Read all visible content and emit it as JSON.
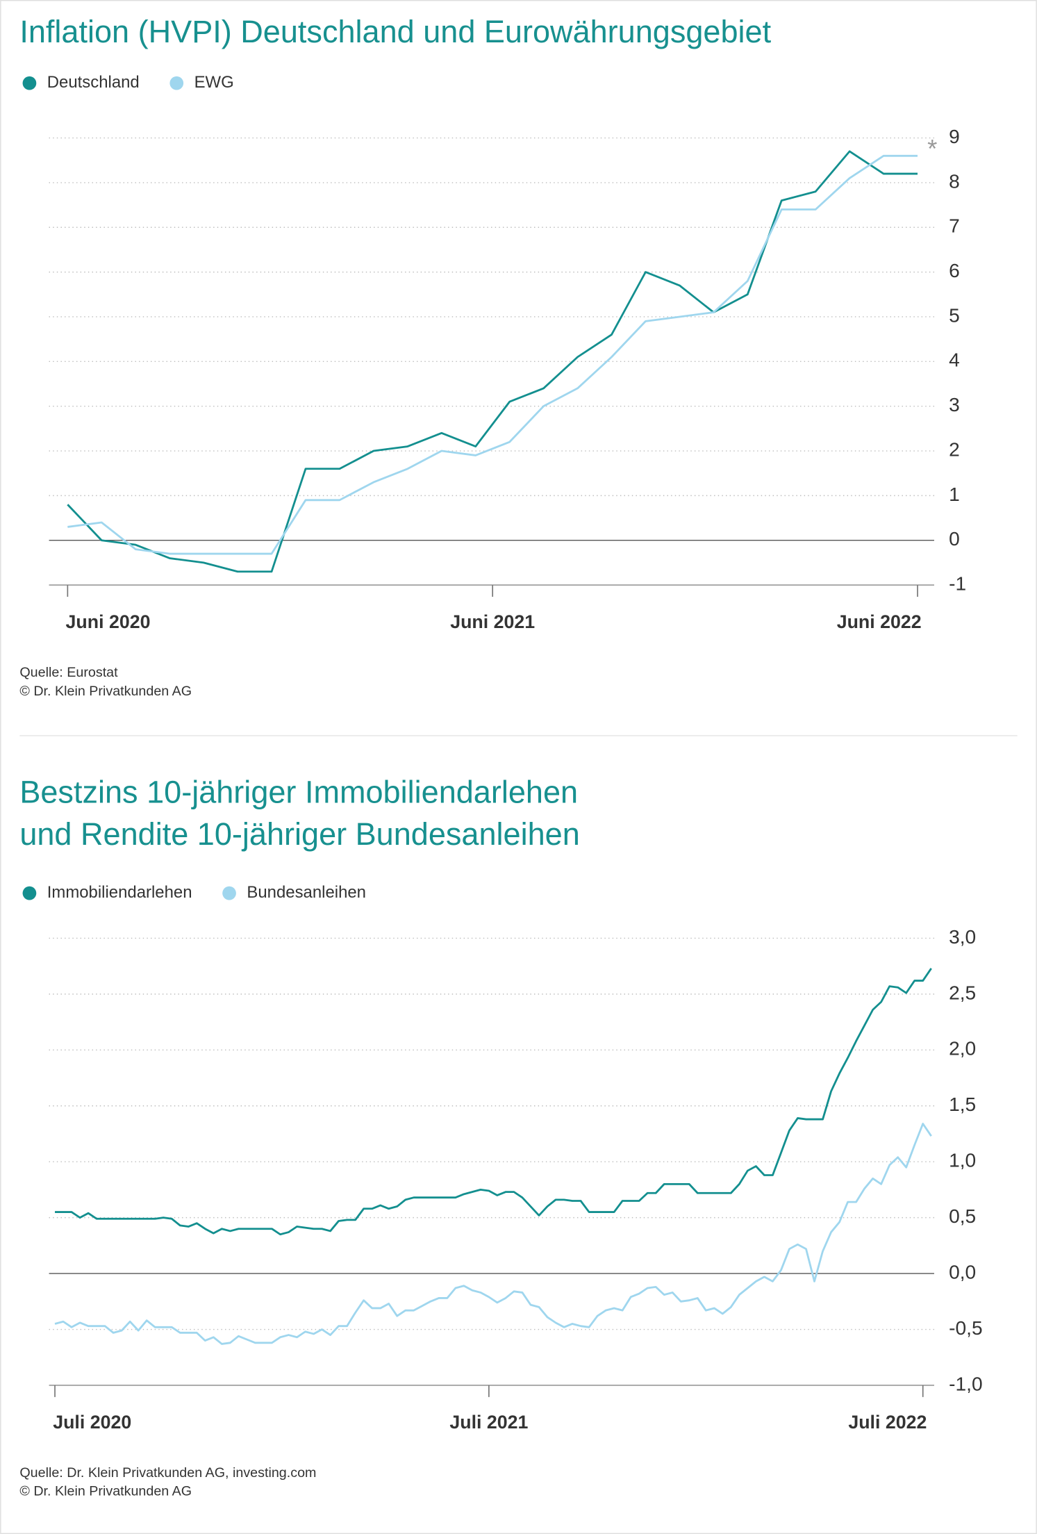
{
  "chart_data": [
    {
      "type": "line",
      "title": [
        "Inflation (HVPI) Deutschland und Eurowährungsgebiet"
      ],
      "source": [
        "Quelle: Eurostat",
        "© Dr. Klein Privatkunden AG"
      ],
      "annotation": "*",
      "x": [
        0,
        1,
        2,
        3,
        4,
        5,
        6,
        7,
        8,
        9,
        10,
        11,
        12,
        13,
        14,
        15,
        16,
        17,
        18,
        19,
        20,
        21,
        22,
        23,
        24,
        25
      ],
      "xlim": [
        0,
        25
      ],
      "xticks": [
        {
          "value": 0,
          "label": "Juni 2020"
        },
        {
          "value": 12.5,
          "label": "Juni 2021"
        },
        {
          "value": 25,
          "label": "Juni 2022"
        }
      ],
      "ylim": [
        -1,
        9
      ],
      "yticks": [
        -1,
        0,
        1,
        2,
        3,
        4,
        5,
        6,
        7,
        8,
        9
      ],
      "grid": true,
      "series": [
        {
          "name": "Deutschland",
          "color": "#138f8f",
          "values": [
            0.8,
            0.0,
            -0.1,
            -0.4,
            -0.5,
            -0.7,
            -0.7,
            1.6,
            1.6,
            2.0,
            2.1,
            2.4,
            2.1,
            3.1,
            3.4,
            4.1,
            4.6,
            6.0,
            5.7,
            5.1,
            5.5,
            7.6,
            7.8,
            8.7,
            8.2,
            8.2
          ]
        },
        {
          "name": "EWG",
          "color": "#9fd6ee",
          "values": [
            0.3,
            0.4,
            -0.2,
            -0.3,
            -0.3,
            -0.3,
            -0.3,
            0.9,
            0.9,
            1.3,
            1.6,
            2.0,
            1.9,
            2.2,
            3.0,
            3.4,
            4.1,
            4.9,
            5.0,
            5.1,
            5.8,
            7.4,
            7.4,
            8.1,
            8.6,
            8.6
          ]
        }
      ]
    },
    {
      "type": "line",
      "title": [
        "Bestzins 10-jähriger Immobiliendarlehen",
        "und Rendite 10-jähriger Bundesanleihen"
      ],
      "source": [
        "Quelle: Dr. Klein Privatkunden AG, investing.com",
        "© Dr. Klein Privatkunden AG"
      ],
      "x": [
        0,
        1,
        2,
        3,
        4,
        5,
        6,
        7,
        8,
        9,
        10,
        11,
        12,
        13,
        14,
        15,
        16,
        17,
        18,
        19,
        20,
        21,
        22,
        23,
        24,
        25,
        26,
        27,
        28,
        29,
        30,
        31,
        32,
        33,
        34,
        35,
        36,
        37,
        38,
        39,
        40,
        41,
        42,
        43,
        44,
        45,
        46,
        47,
        48,
        49,
        50,
        51,
        52,
        53,
        54,
        55,
        56,
        57,
        58,
        59,
        60,
        61,
        62,
        63,
        64,
        65,
        66,
        67,
        68,
        69,
        70,
        71,
        72,
        73,
        74,
        75,
        76,
        77,
        78,
        79,
        80,
        81,
        82,
        83,
        84,
        85,
        86,
        87,
        88,
        89,
        90,
        91,
        92,
        93,
        94,
        95,
        96,
        97,
        98,
        99,
        100,
        101,
        102,
        103,
        104,
        105
      ],
      "xlim": [
        0,
        105
      ],
      "xticks": [
        {
          "value": 0,
          "label": "Juli 2020"
        },
        {
          "value": 52,
          "label": "Juli 2021"
        },
        {
          "value": 104,
          "label": "Juli 2022"
        }
      ],
      "ylim": [
        -1,
        3
      ],
      "yticks": [
        {
          "value": -1,
          "label": "-1,0"
        },
        {
          "value": -0.5,
          "label": "-0,5"
        },
        {
          "value": 0,
          "label": "0,0"
        },
        {
          "value": 0.5,
          "label": "0,5"
        },
        {
          "value": 1,
          "label": "1,0"
        },
        {
          "value": 1.5,
          "label": "1,5"
        },
        {
          "value": 2,
          "label": "2,0"
        },
        {
          "value": 2.5,
          "label": "2,5"
        },
        {
          "value": 3,
          "label": "3,0"
        }
      ],
      "grid": true,
      "series": [
        {
          "name": "Immobiliendarlehen",
          "color": "#138f8f",
          "values": [
            0.55,
            0.55,
            0.55,
            0.5,
            0.54,
            0.49,
            0.49,
            0.49,
            0.49,
            0.49,
            0.49,
            0.49,
            0.49,
            0.5,
            0.49,
            0.43,
            0.42,
            0.45,
            0.4,
            0.36,
            0.4,
            0.38,
            0.4,
            0.4,
            0.4,
            0.4,
            0.4,
            0.35,
            0.37,
            0.42,
            0.41,
            0.4,
            0.4,
            0.38,
            0.47,
            0.48,
            0.48,
            0.58,
            0.58,
            0.61,
            0.58,
            0.6,
            0.66,
            0.68,
            0.68,
            0.68,
            0.68,
            0.68,
            0.68,
            0.71,
            0.73,
            0.75,
            0.74,
            0.7,
            0.73,
            0.73,
            0.68,
            0.6,
            0.52,
            0.6,
            0.66,
            0.66,
            0.65,
            0.65,
            0.55,
            0.55,
            0.55,
            0.55,
            0.65,
            0.65,
            0.65,
            0.72,
            0.72,
            0.8,
            0.8,
            0.8,
            0.8,
            0.72,
            0.72,
            0.72,
            0.72,
            0.72,
            0.8,
            0.92,
            0.96,
            0.88,
            0.88,
            1.08,
            1.28,
            1.39,
            1.38,
            1.38,
            1.38,
            1.63,
            1.79,
            1.93,
            2.08,
            2.22,
            2.36,
            2.43,
            2.57,
            2.56,
            2.51,
            2.62,
            2.62,
            2.73
          ]
        },
        {
          "name": "Bundesanleihen",
          "color": "#9fd6ee",
          "values": [
            -0.45,
            -0.43,
            -0.48,
            -0.44,
            -0.47,
            -0.47,
            -0.47,
            -0.53,
            -0.51,
            -0.43,
            -0.51,
            -0.42,
            -0.48,
            -0.48,
            -0.48,
            -0.53,
            -0.53,
            -0.53,
            -0.6,
            -0.57,
            -0.63,
            -0.62,
            -0.56,
            -0.59,
            -0.62,
            -0.62,
            -0.62,
            -0.57,
            -0.55,
            -0.57,
            -0.52,
            -0.54,
            -0.5,
            -0.55,
            -0.47,
            -0.47,
            -0.35,
            -0.24,
            -0.31,
            -0.31,
            -0.27,
            -0.38,
            -0.33,
            -0.33,
            -0.29,
            -0.25,
            -0.22,
            -0.22,
            -0.13,
            -0.11,
            -0.15,
            -0.17,
            -0.21,
            -0.26,
            -0.22,
            -0.16,
            -0.17,
            -0.28,
            -0.3,
            -0.39,
            -0.44,
            -0.48,
            -0.45,
            -0.47,
            -0.48,
            -0.38,
            -0.33,
            -0.31,
            -0.33,
            -0.21,
            -0.18,
            -0.13,
            -0.12,
            -0.19,
            -0.17,
            -0.25,
            -0.24,
            -0.22,
            -0.33,
            -0.31,
            -0.36,
            -0.3,
            -0.19,
            -0.13,
            -0.07,
            -0.03,
            -0.07,
            0.03,
            0.22,
            0.26,
            0.22,
            -0.07,
            0.2,
            0.37,
            0.46,
            0.64,
            0.64,
            0.76,
            0.85,
            0.8,
            0.97,
            1.04,
            0.95,
            1.15,
            1.34,
            1.23
          ]
        }
      ]
    }
  ]
}
